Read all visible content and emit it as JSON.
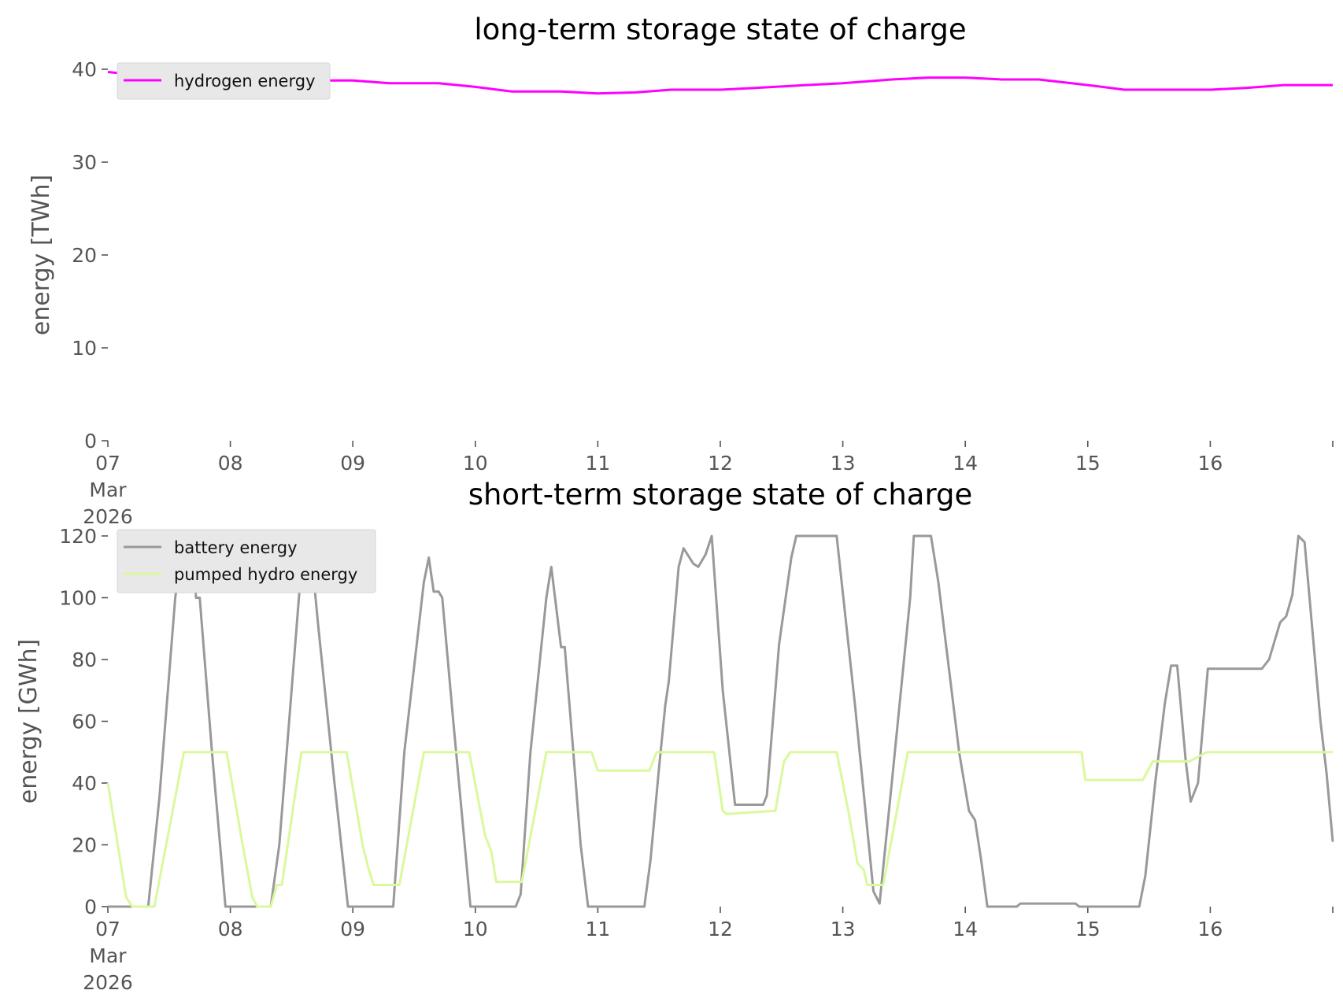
{
  "chart_data": [
    {
      "type": "line",
      "title": "long-term storage state of charge",
      "ylabel": "energy [TWh]",
      "xlabel": "",
      "ylim": [
        0,
        40
      ],
      "yticks": [
        0,
        10,
        20,
        30,
        40
      ],
      "xticks": [
        "07",
        "08",
        "09",
        "10",
        "11",
        "12",
        "13",
        "14",
        "15",
        "16"
      ],
      "xtick_sub": [
        "Mar",
        "2026"
      ],
      "xrange_days": [
        7,
        17
      ],
      "legend": "top-left",
      "grid": false,
      "series": [
        {
          "name": "hydrogen energy",
          "color": "#ff00ff",
          "points": [
            [
              7.0,
              39.7
            ],
            [
              7.3,
              39.3
            ],
            [
              7.6,
              39.0
            ],
            [
              8.0,
              38.9
            ],
            [
              8.5,
              38.8
            ],
            [
              9.0,
              38.8
            ],
            [
              9.3,
              38.5
            ],
            [
              9.7,
              38.5
            ],
            [
              10.0,
              38.1
            ],
            [
              10.3,
              37.6
            ],
            [
              10.7,
              37.6
            ],
            [
              11.0,
              37.4
            ],
            [
              11.3,
              37.5
            ],
            [
              11.6,
              37.8
            ],
            [
              12.0,
              37.8
            ],
            [
              12.3,
              38.0
            ],
            [
              12.7,
              38.3
            ],
            [
              13.0,
              38.5
            ],
            [
              13.4,
              38.9
            ],
            [
              13.7,
              39.1
            ],
            [
              14.0,
              39.1
            ],
            [
              14.3,
              38.9
            ],
            [
              14.6,
              38.9
            ],
            [
              15.0,
              38.3
            ],
            [
              15.3,
              37.8
            ],
            [
              15.7,
              37.8
            ],
            [
              16.0,
              37.8
            ],
            [
              16.3,
              38.0
            ],
            [
              16.6,
              38.3
            ],
            [
              17.0,
              38.3
            ]
          ]
        }
      ]
    },
    {
      "type": "line",
      "title": "short-term storage state of charge",
      "ylabel": "energy [GWh]",
      "xlabel": "",
      "ylim": [
        0,
        120
      ],
      "yticks": [
        0,
        20,
        40,
        60,
        80,
        100,
        120
      ],
      "xticks": [
        "07",
        "08",
        "09",
        "10",
        "11",
        "12",
        "13",
        "14",
        "15",
        "16"
      ],
      "xtick_sub": [
        "Mar",
        "2026"
      ],
      "xrange_days": [
        7,
        17
      ],
      "legend": "top-left",
      "grid": false,
      "series": [
        {
          "name": "battery energy",
          "color": "#999999",
          "points": [
            [
              7.0,
              0
            ],
            [
              7.33,
              0
            ],
            [
              7.42,
              35
            ],
            [
              7.55,
              100
            ],
            [
              7.62,
              120
            ],
            [
              7.7,
              113
            ],
            [
              7.72,
              100
            ],
            [
              7.75,
              100
            ],
            [
              7.85,
              50
            ],
            [
              7.96,
              0
            ],
            [
              8.33,
              0
            ],
            [
              8.4,
              20
            ],
            [
              8.5,
              70
            ],
            [
              8.58,
              110
            ],
            [
              8.62,
              120
            ],
            [
              8.65,
              119
            ],
            [
              8.72,
              90
            ],
            [
              8.85,
              40
            ],
            [
              8.96,
              0
            ],
            [
              9.33,
              0
            ],
            [
              9.42,
              50
            ],
            [
              9.58,
              105
            ],
            [
              9.62,
              113
            ],
            [
              9.66,
              102
            ],
            [
              9.7,
              102
            ],
            [
              9.73,
              100
            ],
            [
              9.82,
              60
            ],
            [
              9.96,
              0
            ],
            [
              10.33,
              0
            ],
            [
              10.37,
              4
            ],
            [
              10.45,
              50
            ],
            [
              10.58,
              100
            ],
            [
              10.62,
              110
            ],
            [
              10.7,
              84
            ],
            [
              10.73,
              84
            ],
            [
              10.8,
              50
            ],
            [
              10.86,
              20
            ],
            [
              10.92,
              0
            ],
            [
              11.38,
              0
            ],
            [
              11.43,
              15
            ],
            [
              11.5,
              45
            ],
            [
              11.55,
              65
            ],
            [
              11.58,
              73
            ],
            [
              11.66,
              110
            ],
            [
              11.7,
              116
            ],
            [
              11.78,
              111
            ],
            [
              11.82,
              110
            ],
            [
              11.88,
              114
            ],
            [
              11.93,
              120
            ],
            [
              12.02,
              70
            ],
            [
              12.12,
              33
            ],
            [
              12.35,
              33
            ],
            [
              12.38,
              36
            ],
            [
              12.48,
              85
            ],
            [
              12.58,
              113
            ],
            [
              12.62,
              120
            ],
            [
              12.95,
              120
            ],
            [
              13.1,
              65
            ],
            [
              13.25,
              5
            ],
            [
              13.3,
              1
            ],
            [
              13.4,
              40
            ],
            [
              13.55,
              100
            ],
            [
              13.58,
              120
            ],
            [
              13.72,
              120
            ],
            [
              13.78,
              105
            ],
            [
              13.95,
              50
            ],
            [
              14.03,
              31
            ],
            [
              14.08,
              28
            ],
            [
              14.13,
              15
            ],
            [
              14.18,
              0
            ],
            [
              14.42,
              0
            ],
            [
              14.45,
              1
            ],
            [
              14.9,
              1
            ],
            [
              14.93,
              0
            ],
            [
              15.42,
              0
            ],
            [
              15.47,
              10
            ],
            [
              15.55,
              40
            ],
            [
              15.63,
              66
            ],
            [
              15.68,
              78
            ],
            [
              15.73,
              78
            ],
            [
              15.8,
              47
            ],
            [
              15.84,
              34
            ],
            [
              15.9,
              40
            ],
            [
              15.95,
              63
            ],
            [
              15.98,
              77
            ],
            [
              16.42,
              77
            ],
            [
              16.48,
              80
            ],
            [
              16.57,
              92
            ],
            [
              16.62,
              94
            ],
            [
              16.67,
              101
            ],
            [
              16.72,
              120
            ],
            [
              16.77,
              118
            ],
            [
              16.9,
              60
            ],
            [
              16.95,
              43
            ],
            [
              17.0,
              21
            ]
          ]
        },
        {
          "name": "pumped hydro energy",
          "color": "#d9f99d",
          "points": [
            [
              7.0,
              40
            ],
            [
              7.15,
              3
            ],
            [
              7.2,
              0
            ],
            [
              7.38,
              0
            ],
            [
              7.62,
              50
            ],
            [
              7.97,
              50
            ],
            [
              8.1,
              20
            ],
            [
              8.18,
              3
            ],
            [
              8.22,
              0
            ],
            [
              8.33,
              0
            ],
            [
              8.38,
              7
            ],
            [
              8.42,
              7
            ],
            [
              8.58,
              50
            ],
            [
              8.95,
              50
            ],
            [
              9.08,
              20
            ],
            [
              9.13,
              12
            ],
            [
              9.17,
              7
            ],
            [
              9.38,
              7
            ],
            [
              9.58,
              50
            ],
            [
              9.95,
              50
            ],
            [
              10.08,
              23
            ],
            [
              10.13,
              18
            ],
            [
              10.17,
              8
            ],
            [
              10.38,
              8
            ],
            [
              10.58,
              50
            ],
            [
              10.95,
              50
            ],
            [
              11.0,
              44
            ],
            [
              11.42,
              44
            ],
            [
              11.48,
              50
            ],
            [
              11.95,
              50
            ],
            [
              12.02,
              31
            ],
            [
              12.05,
              30
            ],
            [
              12.45,
              31
            ],
            [
              12.52,
              47
            ],
            [
              12.57,
              50
            ],
            [
              12.95,
              50
            ],
            [
              13.05,
              30
            ],
            [
              13.12,
              14
            ],
            [
              13.17,
              12
            ],
            [
              13.2,
              7
            ],
            [
              13.33,
              7
            ],
            [
              13.53,
              50
            ],
            [
              14.95,
              50
            ],
            [
              14.98,
              41
            ],
            [
              15.45,
              41
            ],
            [
              15.53,
              47
            ],
            [
              15.83,
              47
            ],
            [
              15.97,
              50
            ],
            [
              17.0,
              50
            ]
          ]
        }
      ]
    }
  ]
}
